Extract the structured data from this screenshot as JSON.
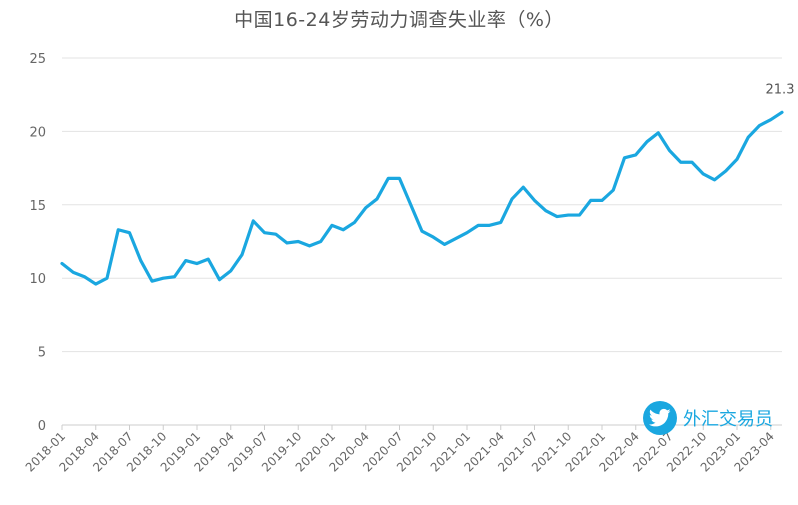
{
  "colors": {
    "series": "#1aa7e0",
    "watermark": "#1aa7e0"
  },
  "watermark": {
    "icon": "twitter-bird-icon",
    "text": "外汇交易员"
  },
  "chart_data": {
    "type": "line",
    "title": "中国16-24岁劳动力调查失业率（%）",
    "xlabel": "",
    "ylabel": "",
    "ylim": [
      0,
      25
    ],
    "yticks": [
      0,
      5,
      10,
      15,
      20,
      25
    ],
    "grid": true,
    "legend": "none",
    "x": [
      "2018-01",
      "2018-02",
      "2018-03",
      "2018-04",
      "2018-05",
      "2018-06",
      "2018-07",
      "2018-08",
      "2018-09",
      "2018-10",
      "2018-11",
      "2018-12",
      "2019-01",
      "2019-02",
      "2019-03",
      "2019-04",
      "2019-05",
      "2019-06",
      "2019-07",
      "2019-08",
      "2019-09",
      "2019-10",
      "2019-11",
      "2019-12",
      "2020-01",
      "2020-02",
      "2020-03",
      "2020-04",
      "2020-05",
      "2020-06",
      "2020-07",
      "2020-08",
      "2020-09",
      "2020-10",
      "2020-11",
      "2020-12",
      "2021-01",
      "2021-02",
      "2021-03",
      "2021-04",
      "2021-05",
      "2021-06",
      "2021-07",
      "2021-08",
      "2021-09",
      "2021-10",
      "2021-11",
      "2021-12",
      "2022-01",
      "2022-02",
      "2022-03",
      "2022-04",
      "2022-05",
      "2022-06",
      "2022-07",
      "2022-08",
      "2022-09",
      "2022-10",
      "2022-11",
      "2022-12",
      "2023-01",
      "2023-02",
      "2023-03",
      "2023-04",
      "2023-05"
    ],
    "xtick_labels": [
      "2018-01",
      "2018-04",
      "2018-07",
      "2018-10",
      "2019-01",
      "2019-04",
      "2019-07",
      "2019-10",
      "2020-01",
      "2020-04",
      "2020-07",
      "2020-10",
      "2021-01",
      "2021-04",
      "2021-07",
      "2021-10",
      "2022-01",
      "2022-04",
      "2022-07",
      "2022-10",
      "2023-01",
      "2023-04"
    ],
    "series": [
      {
        "values": [
          11.0,
          10.4,
          10.1,
          9.6,
          10.0,
          13.3,
          13.1,
          11.2,
          9.8,
          10.0,
          10.1,
          11.2,
          11.0,
          11.3,
          9.9,
          10.5,
          11.6,
          13.9,
          13.1,
          13.0,
          12.4,
          12.5,
          12.2,
          12.5,
          13.6,
          13.3,
          13.8,
          14.8,
          15.4,
          16.8,
          16.8,
          15.0,
          13.2,
          12.8,
          12.3,
          12.7,
          13.1,
          13.6,
          13.6,
          13.8,
          15.4,
          16.2,
          15.3,
          14.6,
          14.2,
          14.3,
          14.3,
          15.3,
          15.3,
          16.0,
          18.2,
          18.4,
          19.3,
          19.9,
          18.7,
          17.9,
          17.9,
          17.1,
          16.7,
          17.3,
          18.1,
          19.6,
          20.4,
          20.8,
          21.3
        ]
      }
    ],
    "annotations": [
      {
        "text": "21.3",
        "at_x": "2023-05"
      }
    ]
  }
}
